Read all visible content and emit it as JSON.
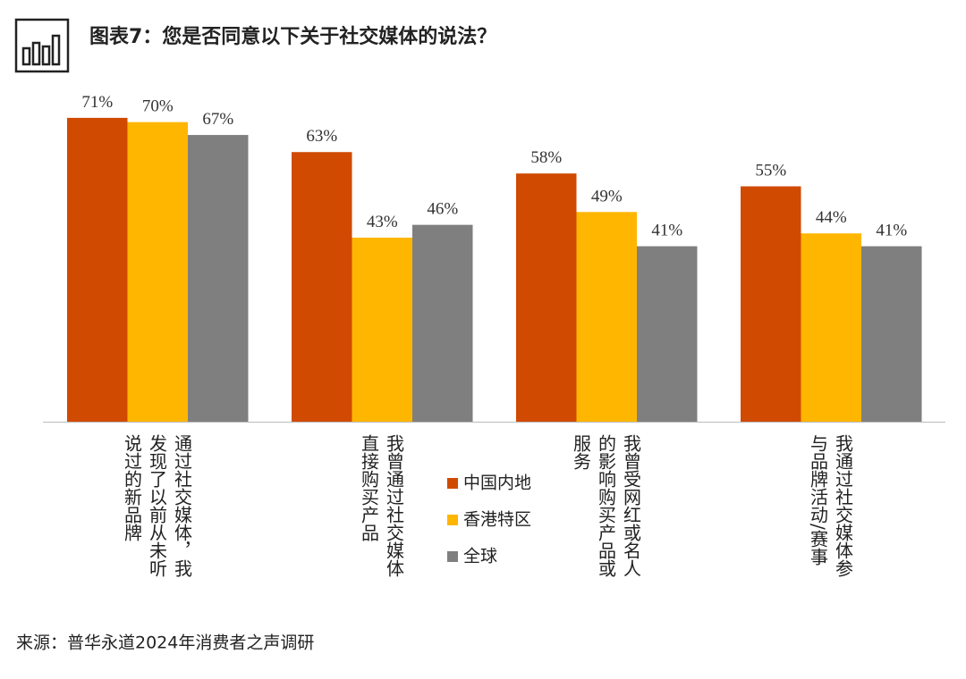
{
  "chart_data": {
    "type": "bar",
    "title": "图表7：您是否同意以下关于社交媒体的说法？",
    "categories": [
      "通过社交媒体，我发现了以前从未听说过的新品牌",
      "我曾通过社交媒体直接购买产品",
      "我曾受网红或名人的影响购买产品或服务",
      "我通过社交媒体参与品牌活动/赛事"
    ],
    "series": [
      {
        "name": "中国内地",
        "color": "#d04a02",
        "values": [
          71,
          63,
          58,
          55
        ],
        "value_labels": [
          "71%",
          "63%",
          "58%",
          "55%"
        ]
      },
      {
        "name": "香港特区",
        "color": "#ffb600",
        "values": [
          70,
          43,
          49,
          44
        ],
        "value_labels": [
          "70%",
          "43%",
          "49%",
          "44%"
        ]
      },
      {
        "name": "全球",
        "color": "#7f7f7f",
        "values": [
          67,
          46,
          41,
          41
        ],
        "value_labels": [
          "67%",
          "46%",
          "41%",
          "41%"
        ]
      }
    ],
    "source": "来源：普华永道2024年消费者之声调研"
  }
}
